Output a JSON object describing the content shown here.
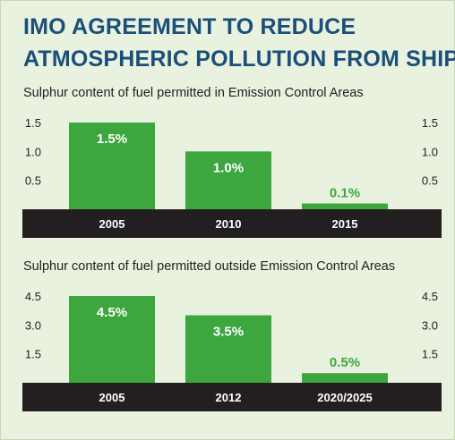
{
  "header": {
    "title_line1": "IMO AGREEMENT TO REDUCE",
    "title_line2": "ATMOSPHERIC POLLUTION FROM SHIPS"
  },
  "colors": {
    "title": "#1a4f7a",
    "bar": "#3da63f",
    "axis_band": "#231f20",
    "background": "#e9f1df"
  },
  "chart_data": [
    {
      "type": "bar",
      "title": "Sulphur content of fuel permitted in Emission Control Areas",
      "categories": [
        "2005",
        "2010",
        "2015"
      ],
      "values": [
        1.5,
        1.0,
        0.1
      ],
      "value_labels": [
        "1.5%",
        "1.0%",
        "0.1%"
      ],
      "yticks": [
        "1.5",
        "1.0",
        "0.5"
      ],
      "tick_values": [
        1.5,
        1.0,
        0.5
      ],
      "ylim": [
        0,
        1.5
      ],
      "grid": false,
      "legend": "none"
    },
    {
      "type": "bar",
      "title": "Sulphur content of fuel permitted outside Emission Control Areas",
      "categories": [
        "2005",
        "2012",
        "2020/2025"
      ],
      "values": [
        4.5,
        3.5,
        0.5
      ],
      "value_labels": [
        "4.5%",
        "3.5%",
        "0.5%"
      ],
      "yticks": [
        "4.5",
        "3.0",
        "1.5"
      ],
      "tick_values": [
        4.5,
        3.0,
        1.5
      ],
      "ylim": [
        0,
        4.5
      ],
      "grid": false,
      "legend": "none"
    }
  ]
}
